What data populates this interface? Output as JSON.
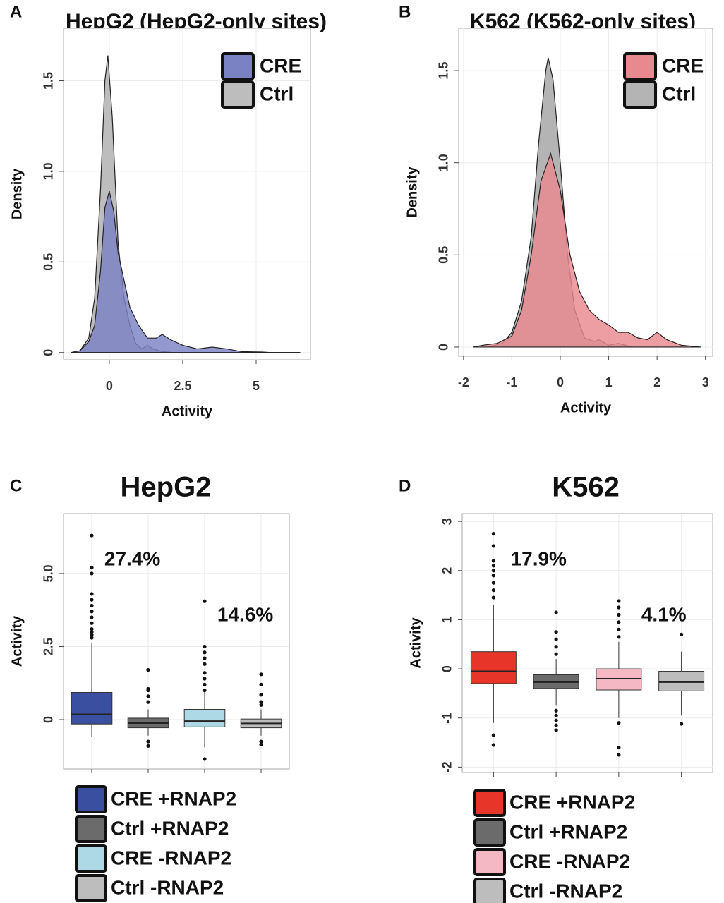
{
  "chart_data": [
    {
      "type": "density",
      "label": "A",
      "title": "HepG2 (HepG2-only sites)",
      "x_label": "Activity",
      "y_label": "Density",
      "xlim": [
        -1.56,
        6.85
      ],
      "xticks": [
        0,
        2.5,
        5
      ],
      "ylim": [
        -0.04,
        1.79
      ],
      "yticks": [
        0,
        0.5,
        {
          "value": 1,
          "label": "1.0"
        },
        1.5
      ],
      "grid": true,
      "legend": "top-right",
      "series": [
        {
          "name": "CRE",
          "color": "#7b82c4",
          "x": [
            -1.3,
            -1,
            -0.7,
            -0.5,
            -0.3,
            -0.15,
            0,
            0.15,
            0.3,
            0.5,
            0.7,
            1,
            1.3,
            1.6,
            1.8,
            2.1,
            2.5,
            3,
            3.5,
            4,
            4.5,
            5.2,
            5.5,
            6.5
          ],
          "values": [
            0,
            0.01,
            0.06,
            0.15,
            0.45,
            0.8,
            0.89,
            0.78,
            0.55,
            0.4,
            0.25,
            0.15,
            0.08,
            0.08,
            0.1,
            0.07,
            0.04,
            0.02,
            0.03,
            0.02,
            0.005,
            0.003,
            0,
            0
          ]
        },
        {
          "name": "Ctrl",
          "color": "#bdbdbd",
          "x": [
            -1.3,
            -1,
            -0.7,
            -0.5,
            -0.3,
            -0.15,
            -0.05,
            0.1,
            0.3,
            0.5,
            0.7,
            0.9,
            1.1,
            1.3,
            1.5,
            1.8,
            2.2,
            6.5
          ],
          "values": [
            0,
            0.01,
            0.08,
            0.3,
            0.9,
            1.5,
            1.64,
            1.3,
            0.6,
            0.3,
            0.15,
            0.05,
            0.02,
            0.04,
            0.02,
            0.005,
            0,
            0
          ]
        }
      ]
    },
    {
      "type": "density",
      "label": "B",
      "title": "K562 (K562-only sites)",
      "x_label": "Activity",
      "y_label": "Density",
      "xlim": [
        -2.1,
        3.15
      ],
      "xticks": [
        -2,
        -1,
        0,
        1,
        2,
        3
      ],
      "ylim": [
        -0.05,
        1.73
      ],
      "yticks": [
        0,
        0.5,
        {
          "value": 1,
          "label": "1.0"
        },
        1.5
      ],
      "grid": true,
      "legend": "top-right",
      "series": [
        {
          "name": "CRE",
          "color": "#e8898f",
          "x": [
            -1.8,
            -1.6,
            -1.3,
            -1,
            -0.8,
            -0.6,
            -0.4,
            -0.2,
            0,
            0.2,
            0.4,
            0.6,
            0.8,
            1,
            1.2,
            1.4,
            1.6,
            1.8,
            2,
            2.2,
            2.5,
            2.9
          ],
          "values": [
            0,
            0.01,
            0.02,
            0.06,
            0.2,
            0.5,
            0.9,
            1.05,
            0.85,
            0.5,
            0.3,
            0.2,
            0.15,
            0.12,
            0.08,
            0.08,
            0.05,
            0.04,
            0.08,
            0.04,
            0.01,
            0
          ]
        },
        {
          "name": "Ctrl",
          "color": "#b4b4b4",
          "x": [
            -1.5,
            -1.2,
            -1,
            -0.8,
            -0.6,
            -0.45,
            -0.3,
            -0.25,
            -0.15,
            0,
            0.15,
            0.3,
            0.5,
            0.7,
            0.8,
            1,
            1.2,
            1.5,
            2.9
          ],
          "values": [
            0,
            0.02,
            0.08,
            0.25,
            0.6,
            1.1,
            1.5,
            1.57,
            1.45,
            1,
            0.5,
            0.2,
            0.05,
            0.03,
            0.04,
            0.01,
            0.02,
            0,
            0
          ]
        }
      ]
    },
    {
      "type": "box",
      "label": "C",
      "title": "HepG2",
      "y_label": "Activity",
      "ylim": [
        -1.69,
        7.05
      ],
      "yticks": [
        0,
        2.5,
        {
          "value": 5,
          "label": "5.0"
        }
      ],
      "grid": true,
      "legend": "bottom",
      "categories": [
        "CRE +RNAP2",
        "Ctrl +RNAP2",
        "CRE -RNAP2",
        "Ctrl -RNAP2"
      ],
      "colors": [
        "#3a4fa0",
        "#6b6b6b",
        "#add8e6",
        "#bdbdbd"
      ],
      "boxes": [
        {
          "min": -0.6,
          "q1": -0.15,
          "median": 0.18,
          "q3": 0.93,
          "max": 2.6,
          "outliers": [
            2.8,
            2.9,
            3.0,
            3.1,
            3.3,
            3.5,
            3.7,
            3.9,
            4.1,
            4.3,
            5.0,
            5.2,
            6.3
          ]
        },
        {
          "min": -0.55,
          "q1": -0.28,
          "median": -0.12,
          "q3": 0.05,
          "max": 0.35,
          "outliers": [
            0.6,
            0.8,
            1.0,
            1.05,
            1.7,
            -0.75,
            -0.9
          ]
        },
        {
          "min": -0.95,
          "q1": -0.25,
          "median": -0.05,
          "q3": 0.35,
          "max": 0.95,
          "outliers": [
            1.0,
            1.2,
            1.4,
            1.6,
            1.9,
            2.1,
            2.3,
            2.5,
            4.05,
            -1.35
          ]
        },
        {
          "min": -0.55,
          "q1": -0.28,
          "median": -0.13,
          "q3": 0.02,
          "max": 0.35,
          "outliers": [
            0.5,
            0.6,
            0.85,
            1.2,
            1.55,
            -0.75,
            -0.85
          ]
        }
      ],
      "annotations": [
        "27.4%",
        "14.6%"
      ]
    },
    {
      "type": "box",
      "label": "D",
      "title": "K562",
      "y_label": "Activity",
      "ylim": [
        -2.11,
        3.16
      ],
      "yticks": [
        -2,
        -1,
        0,
        1,
        2,
        3
      ],
      "grid": true,
      "legend": "bottom",
      "categories": [
        "CRE +RNAP2",
        "Ctrl +RNAP2",
        "CRE -RNAP2",
        "Ctrl -RNAP2"
      ],
      "colors": [
        "#e8352a",
        "#6b6b6b",
        "#f4b8c4",
        "#bdbdbd"
      ],
      "boxes": [
        {
          "min": -1.1,
          "q1": -0.3,
          "median": -0.05,
          "q3": 0.35,
          "max": 1.3,
          "outliers": [
            1.45,
            1.6,
            1.75,
            1.9,
            2.0,
            2.1,
            2.2,
            2.5,
            2.75,
            -1.35,
            -1.55
          ]
        },
        {
          "min": -0.75,
          "q1": -0.4,
          "median": -0.27,
          "q3": -0.12,
          "max": 0.2,
          "outliers": [
            0.3,
            0.45,
            0.6,
            0.75,
            1.15,
            -0.85,
            -0.95,
            -1.05,
            -1.15,
            -1.25
          ]
        },
        {
          "min": -1.0,
          "q1": -0.43,
          "median": -0.2,
          "q3": 0,
          "max": 0.55,
          "outliers": [
            0.65,
            0.8,
            0.95,
            1.1,
            1.25,
            1.38,
            -1.1,
            -1.6,
            -1.75
          ]
        },
        {
          "min": -0.95,
          "q1": -0.45,
          "median": -0.27,
          "q3": -0.05,
          "max": 0.35,
          "outliers": [
            0.7,
            -1.12
          ]
        }
      ],
      "annotations": [
        "17.9%",
        "4.1%"
      ]
    }
  ]
}
